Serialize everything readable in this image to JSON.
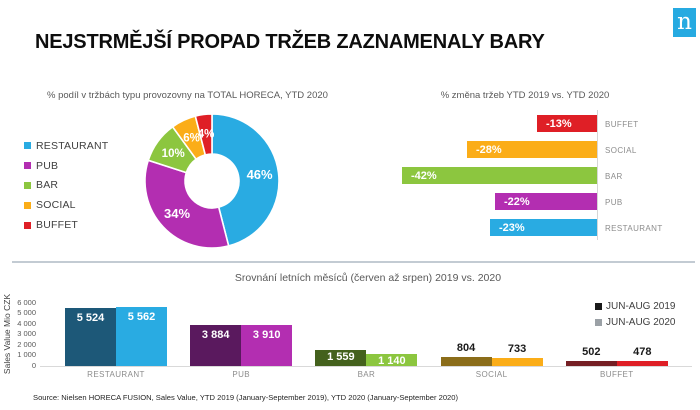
{
  "title": "NEJSTRMĚJŠÍ PROPAD TRŽEB ZAZNAMENALY BARY",
  "logo": {
    "name": "nielsen-logo",
    "letter": "n",
    "color": "#26aae1"
  },
  "source": "Source: Nielsen HORECA FUSION, Sales Value, YTD 2019 (January-September 2019), YTD 2020 (January-September 2020)",
  "chart_data": [
    {
      "type": "pie",
      "subtype": "donut",
      "title": "% podíl v tržbách typu provozovny na TOTAL HORECA, YTD 2020",
      "categories": [
        "RESTAURANT",
        "PUB",
        "BAR",
        "SOCIAL",
        "BUFFET"
      ],
      "values": [
        46,
        34,
        10,
        6,
        4
      ],
      "labels": [
        "46%",
        "34%",
        "10%",
        "6%",
        "4%"
      ],
      "colors": [
        "#29abe2",
        "#b32eb1",
        "#8cc63f",
        "#fbad18",
        "#df1f26"
      ],
      "legend_position": "left",
      "start_angle_deg": 0,
      "direction": "clockwise"
    },
    {
      "type": "bar",
      "orientation": "horizontal",
      "title": "% změna tržeb YTD 2019 vs. YTD 2020",
      "categories": [
        "BUFFET",
        "SOCIAL",
        "BAR",
        "PUB",
        "RESTAURANT"
      ],
      "values": [
        -13,
        -28,
        -42,
        -22,
        -23
      ],
      "labels": [
        "-13%",
        "-28%",
        "-42%",
        "-22%",
        "-23%"
      ],
      "colors": [
        "#df1f26",
        "#fbad18",
        "#8cc63f",
        "#b32eb1",
        "#29abe2"
      ],
      "xlim": [
        -45,
        0
      ],
      "grid": false
    },
    {
      "type": "bar",
      "orientation": "vertical",
      "title": "Srovnání letních měsíců (červen až srpen) 2019 vs. 2020",
      "ylabel": "Sales Value Mio CZK",
      "ylim": [
        0,
        6000
      ],
      "yticks": [
        "6 000",
        "5 000",
        "4 000",
        "3 000",
        "2 000",
        "1 000",
        "0"
      ],
      "categories": [
        "RESTAURANT",
        "PUB",
        "BAR",
        "SOCIAL",
        "BUFFET"
      ],
      "label_placement": [
        "inside",
        "inside",
        "inside",
        "above",
        "above"
      ],
      "legend_position": "top-right",
      "series": [
        {
          "name": "JUN-AUG 2019",
          "values": [
            5524,
            3884,
            1559,
            804,
            502
          ],
          "labels": [
            "5 524",
            "3 884",
            "1 559",
            "804",
            "502"
          ],
          "colors": [
            "#1d5878",
            "#5a195e",
            "#44611d",
            "#8b6d1a",
            "#751f24"
          ],
          "legend_color": "#1a1a1a"
        },
        {
          "name": "JUN-AUG 2020",
          "values": [
            5562,
            3910,
            1140,
            733,
            478
          ],
          "labels": [
            "5 562",
            "3 910",
            "1 140",
            "733",
            "478"
          ],
          "colors": [
            "#29abe2",
            "#b32eb1",
            "#8cc63f",
            "#fbad18",
            "#df1f26"
          ],
          "legend_color": "#9ba1a6"
        }
      ]
    }
  ]
}
